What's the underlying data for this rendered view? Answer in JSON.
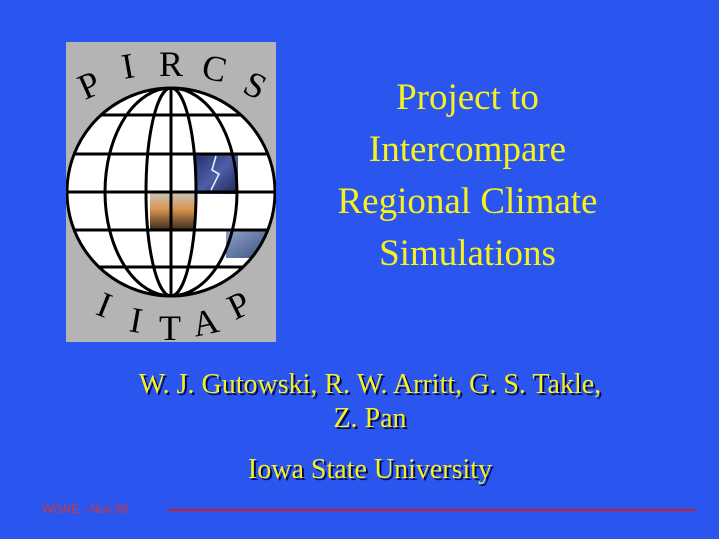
{
  "logo": {
    "top_text": "PIRCS",
    "bottom_text": "IITAP",
    "top_letters": [
      "P",
      "I",
      "R",
      "C",
      "S"
    ],
    "bottom_letters": [
      "I",
      "I",
      "T",
      "A",
      "P"
    ]
  },
  "title": {
    "lines": [
      "Project to",
      "Intercompare",
      "Regional Climate",
      "Simulations"
    ]
  },
  "authors": {
    "lines": [
      "W. J. Gutowski, R. W. Arritt, G. S. Takle,",
      "Z. Pan"
    ]
  },
  "affiliation": "Iowa State University",
  "footer": {
    "label": "WGNE - Nov 98"
  },
  "colors": {
    "background": "#2b55ef",
    "title_text": "#f7f21e",
    "footer_text": "#d9372a",
    "footer_rule": "#d11a1a"
  }
}
